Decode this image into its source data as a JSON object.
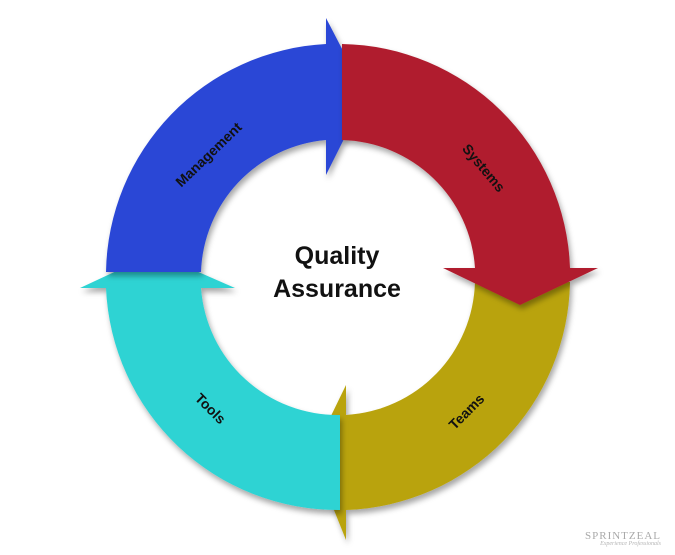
{
  "center": {
    "line1": "Quality",
    "line2": "Assurance"
  },
  "segments": [
    {
      "key": "management",
      "label": "Management",
      "color": "#2c47d6"
    },
    {
      "key": "systems",
      "label": "Systems",
      "color": "#b01f2f"
    },
    {
      "key": "teams",
      "label": "Teams",
      "color": "#b9a30a"
    },
    {
      "key": "tools",
      "label": "Tools",
      "color": "#2fd3d3"
    }
  ],
  "watermark": {
    "brand": "SPRINTZEAL",
    "tagline": "Experience Professionals"
  }
}
